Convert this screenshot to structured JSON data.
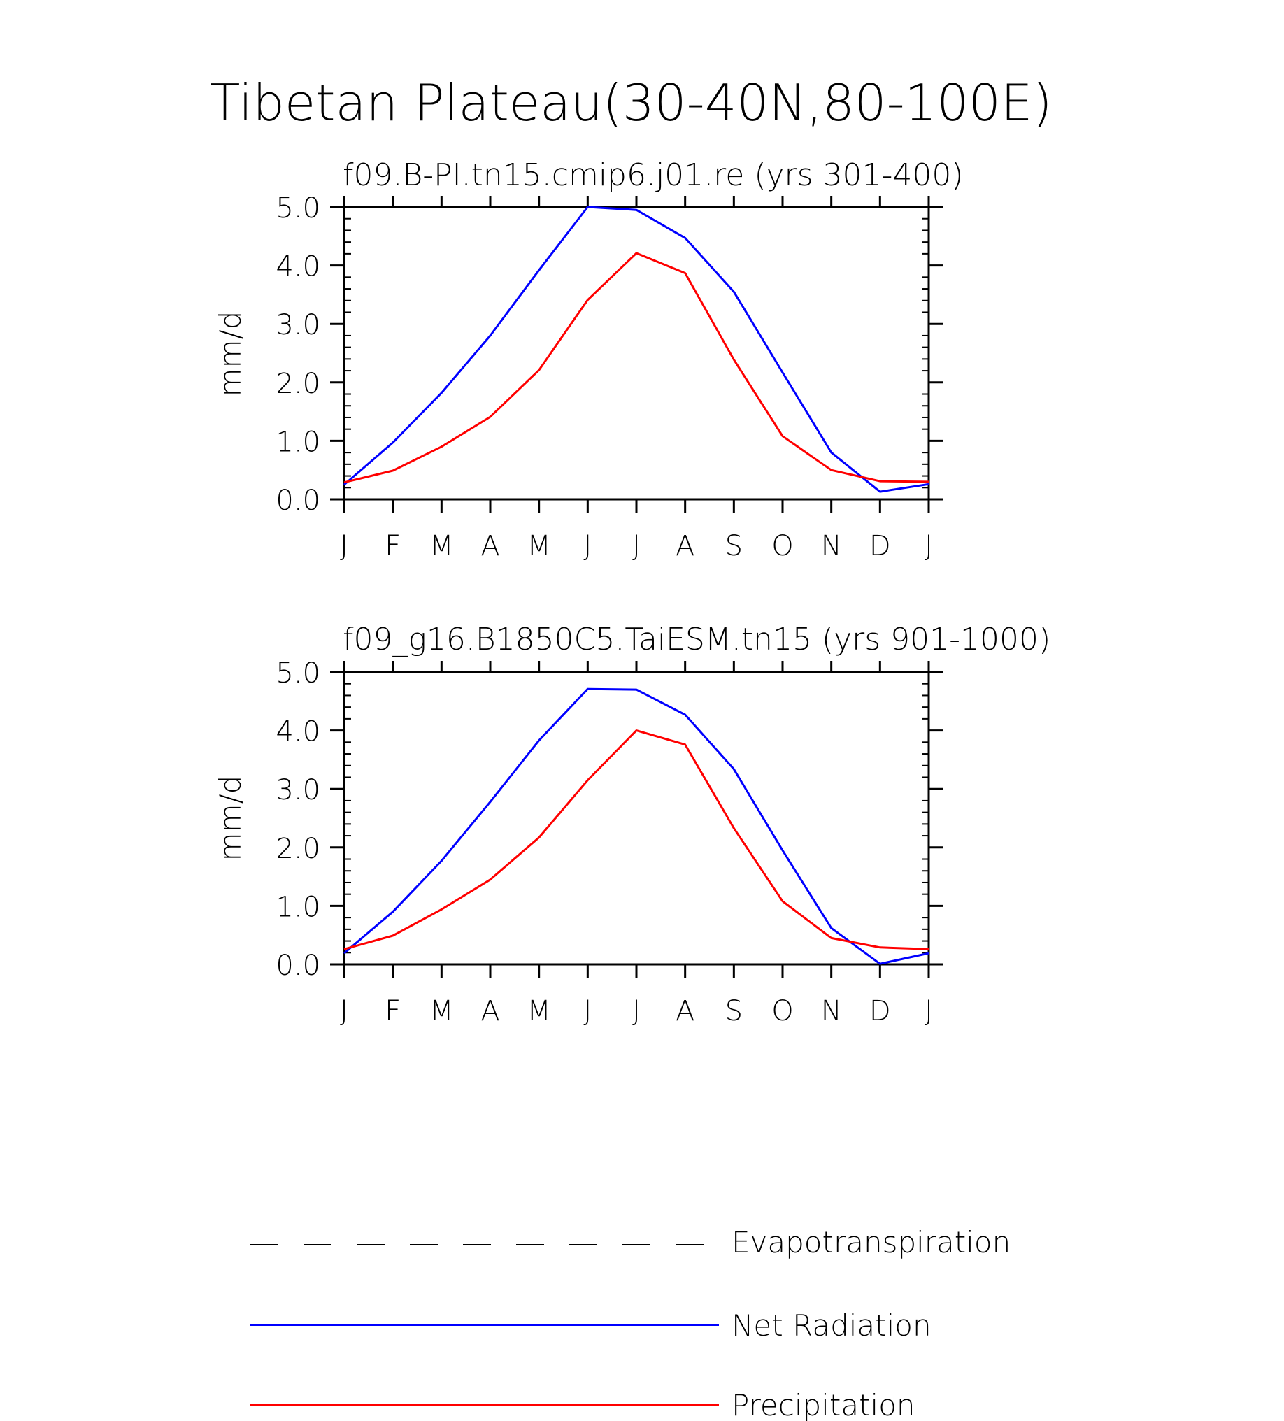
{
  "title": "Tibetan Plateau(30-40N,80-100E)",
  "chart_data": [
    {
      "type": "line",
      "title": "f09.B-PI.tn15.cmip6.j01.re (yrs 301-400)",
      "ylabel": "mm/d",
      "xlabel": "",
      "categories": [
        "J",
        "F",
        "M",
        "A",
        "M",
        "J",
        "J",
        "A",
        "S",
        "O",
        "N",
        "D",
        "J"
      ],
      "ylim": [
        0,
        5
      ],
      "yticks": [
        "0.0",
        "1.0",
        "2.0",
        "3.0",
        "4.0",
        "5.0"
      ],
      "grid": false,
      "series": [
        {
          "name": "Net Radiation",
          "color": "#0000ff",
          "dash": "solid",
          "values": [
            0.25,
            0.97,
            1.82,
            2.8,
            3.92,
            5.0,
            4.95,
            4.47,
            3.55,
            2.17,
            0.8,
            0.13,
            0.26
          ]
        },
        {
          "name": "Precipitation",
          "color": "#ff0000",
          "dash": "solid",
          "values": [
            0.29,
            0.49,
            0.9,
            1.41,
            2.21,
            3.41,
            4.21,
            3.87,
            2.39,
            1.08,
            0.5,
            0.31,
            0.3
          ]
        }
      ]
    },
    {
      "type": "line",
      "title": "f09_g16.B1850C5.TaiESM.tn15 (yrs 901-1000)",
      "ylabel": "mm/d",
      "xlabel": "",
      "categories": [
        "J",
        "F",
        "M",
        "A",
        "M",
        "J",
        "J",
        "A",
        "S",
        "O",
        "N",
        "D",
        "J"
      ],
      "ylim": [
        0,
        5
      ],
      "yticks": [
        "0.0",
        "1.0",
        "2.0",
        "3.0",
        "4.0",
        "5.0"
      ],
      "grid": false,
      "series": [
        {
          "name": "Net Radiation",
          "color": "#0000ff",
          "dash": "solid",
          "values": [
            0.19,
            0.9,
            1.77,
            2.78,
            3.83,
            4.71,
            4.7,
            4.27,
            3.34,
            1.95,
            0.62,
            0.01,
            0.19
          ]
        },
        {
          "name": "Precipitation",
          "color": "#ff0000",
          "dash": "solid",
          "values": [
            0.26,
            0.49,
            0.94,
            1.45,
            2.17,
            3.15,
            4.0,
            3.76,
            2.33,
            1.08,
            0.45,
            0.29,
            0.26
          ]
        }
      ]
    }
  ],
  "legend": [
    {
      "label": "Evapotranspiration",
      "color": "#000000",
      "dash": "dashed"
    },
    {
      "label": "Net Radiation",
      "color": "#0000ff",
      "dash": "solid"
    },
    {
      "label": "Precipitation",
      "color": "#ff0000",
      "dash": "solid"
    }
  ]
}
